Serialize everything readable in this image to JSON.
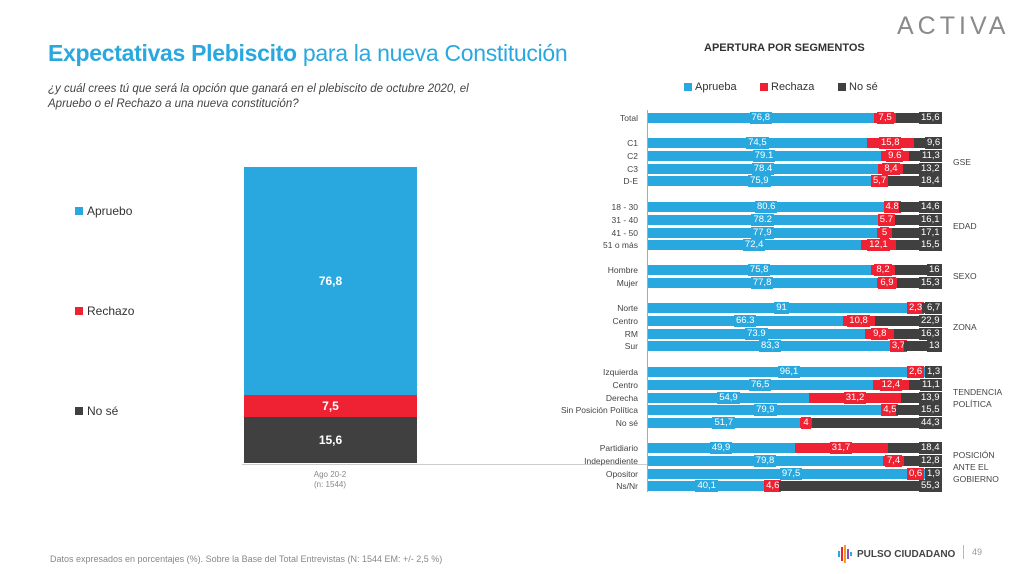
{
  "header": {
    "title_bold": "Expectativas Plebiscito",
    "title_rest": " para la nueva Constitución",
    "question": "¿y cuál crees tú que será la opción que ganará en el plebiscito de octubre 2020, el Apruebo o el Rechazo a una nueva constitución?",
    "logo": "ACTIVA"
  },
  "colors": {
    "aprueba": "#29a8e0",
    "rechaza": "#ee2233",
    "nose": "#404040",
    "title": "#29a8e0"
  },
  "footer": {
    "note": "Datos expresados en porcentajes (%). Sobre la Base del Total Entrevistas (N: 1544  EM: +/- 2,5 %)",
    "brand": "PULSO CIUDADANO",
    "page": "49"
  },
  "chart_data": [
    {
      "type": "bar",
      "stacked": true,
      "categories": [
        "Ago 20-2 (n: 1544)"
      ],
      "category_line1": "Ago 20-2",
      "category_line2": "(n: 1544)",
      "legend": [
        "Apruebo",
        "Rechazo",
        "No sé"
      ],
      "legend_placement": "left",
      "series": [
        {
          "name": "Apruebo",
          "values": [
            76.8
          ],
          "label": "76,8"
        },
        {
          "name": "Rechazo",
          "values": [
            7.5
          ],
          "label": "7,5"
        },
        {
          "name": "No sé",
          "values": [
            15.6
          ],
          "label": "15,6"
        }
      ],
      "ylim": [
        0,
        100
      ]
    },
    {
      "type": "bar",
      "orientation": "horizontal",
      "stacked": true,
      "title": "APERTURA POR SEGMENTOS",
      "legend": [
        "Aprueba",
        "Rechaza",
        "No sé"
      ],
      "legend_placement": "top",
      "xlim": [
        0,
        100
      ],
      "groups": [
        {
          "name": "",
          "rows": [
            {
              "label": "Total",
              "values": [
                "76,8",
                "7,5",
                "15,6"
              ]
            }
          ]
        },
        {
          "name": "GSE",
          "rows": [
            {
              "label": "C1",
              "values": [
                "74,5",
                "15,8",
                "9,6"
              ]
            },
            {
              "label": "C2",
              "values": [
                "79.1",
                "9.6",
                "11,3"
              ]
            },
            {
              "label": "C3",
              "values": [
                "78.4",
                "8,4",
                "13,2"
              ]
            },
            {
              "label": "D-E",
              "values": [
                "75,9",
                "5,7",
                "18,4"
              ]
            }
          ]
        },
        {
          "name": "EDAD",
          "rows": [
            {
              "label": "18 - 30",
              "values": [
                "80.6",
                "4.8",
                "14,6"
              ]
            },
            {
              "label": "31 - 40",
              "values": [
                "78.2",
                "5.7",
                "16,1"
              ]
            },
            {
              "label": "41 - 50",
              "values": [
                "77,9",
                "5",
                "17,1"
              ]
            },
            {
              "label": "51 o más",
              "values": [
                "72,4",
                "12,1",
                "15,5"
              ]
            }
          ]
        },
        {
          "name": "SEXO",
          "rows": [
            {
              "label": "Hombre",
              "values": [
                "75,8",
                "8,2",
                "16"
              ]
            },
            {
              "label": "Mujer",
              "values": [
                "77,8",
                "6,9",
                "15,3"
              ]
            }
          ]
        },
        {
          "name": "ZONA",
          "rows": [
            {
              "label": "Norte",
              "values": [
                "91",
                "2,3",
                "6,7"
              ]
            },
            {
              "label": "Centro",
              "values": [
                "66.3",
                "10,8",
                "22,9"
              ]
            },
            {
              "label": "RM",
              "values": [
                "73.9",
                "9,8",
                "16,3"
              ]
            },
            {
              "label": "Sur",
              "values": [
                "83,3",
                "3,7",
                "13"
              ]
            }
          ]
        },
        {
          "name": "TENDENCIA POLÍTICA",
          "rows": [
            {
              "label": "Izquierda",
              "values": [
                "96,1",
                "2,6",
                "1,3"
              ]
            },
            {
              "label": "Centro",
              "values": [
                "76,5",
                "12,4",
                "11,1"
              ]
            },
            {
              "label": "Derecha",
              "values": [
                "54,9",
                "31,2",
                "13,9"
              ]
            },
            {
              "label": "Sin Posición Política",
              "values": [
                "79,9",
                "4,5",
                "15,5"
              ]
            },
            {
              "label": "No sé",
              "values": [
                "51,7",
                "4",
                "44,3"
              ]
            }
          ]
        },
        {
          "name": "POSICIÓN ANTE EL GOBIERNO",
          "rows": [
            {
              "label": "Partidiario",
              "values": [
                "49,9",
                "31,7",
                "18,4"
              ]
            },
            {
              "label": "Independiente",
              "values": [
                "79,8",
                "7,4",
                "12,8"
              ]
            },
            {
              "label": "Opositor",
              "values": [
                "97,5",
                "0,6",
                "1,9"
              ]
            },
            {
              "label": "Ns/Nr",
              "values": [
                "40,1",
                "4,6",
                "55,3"
              ]
            }
          ]
        }
      ]
    }
  ]
}
